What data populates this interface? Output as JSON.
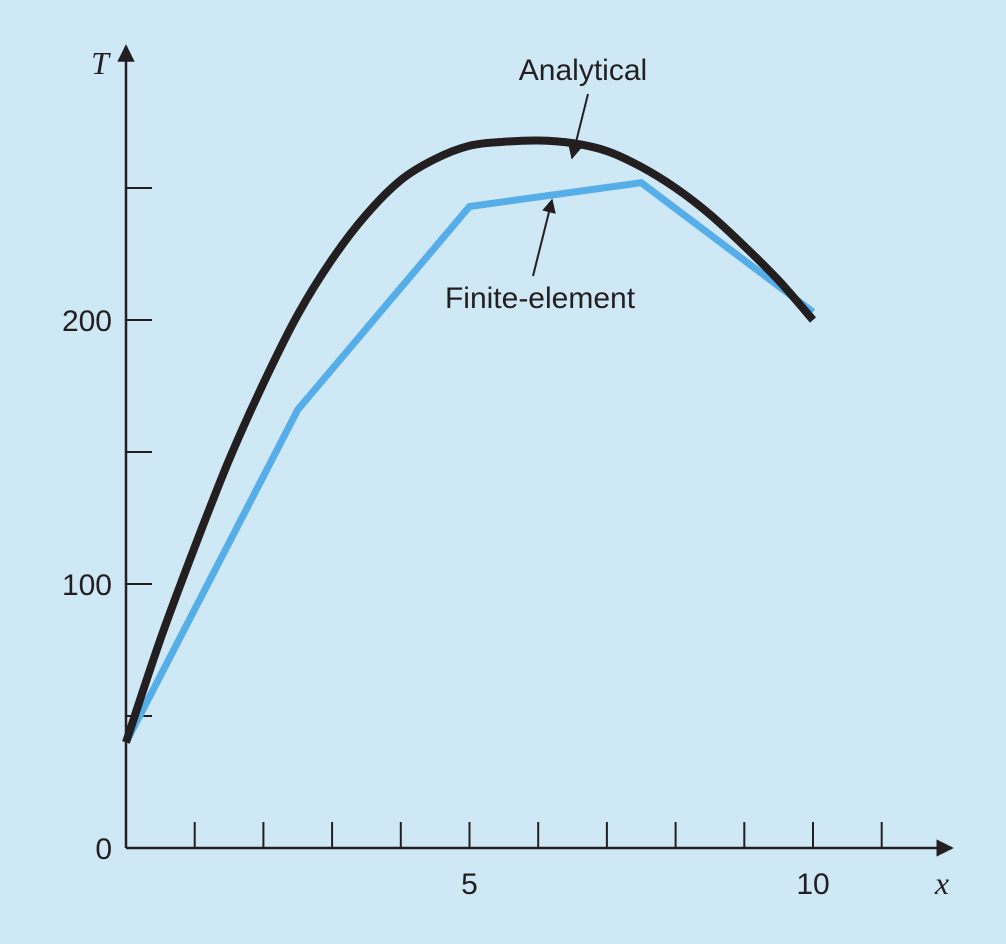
{
  "chart_data": {
    "type": "line",
    "xlabel": "x",
    "ylabel": "T",
    "xlim": [
      0,
      12
    ],
    "ylim": [
      0,
      300
    ],
    "x_ticks": [
      1,
      2,
      3,
      4,
      5,
      6,
      7,
      8,
      9,
      10,
      11
    ],
    "x_tick_labels": {
      "5": "5",
      "10": "10"
    },
    "y_ticks": [
      50,
      100,
      150,
      200,
      250
    ],
    "y_tick_labels": {
      "0": "0",
      "100": "100",
      "200": "200"
    },
    "grid": false,
    "colors": {
      "analytical": "#231f20",
      "finite_element": "#55aee8",
      "background": "#cfe8f6"
    },
    "series": [
      {
        "name": "Analytical",
        "x": [
          0,
          0.5,
          1,
          1.5,
          2,
          2.5,
          3,
          3.5,
          4,
          4.5,
          5,
          5.5,
          6,
          6.5,
          7,
          7.5,
          8,
          8.5,
          9,
          9.5,
          10
        ],
        "values": [
          40,
          79,
          114,
          147,
          176,
          202,
          223,
          240,
          253,
          261,
          266,
          267.5,
          268,
          267,
          264,
          258,
          250,
          240,
          228,
          215,
          200
        ]
      },
      {
        "name": "Finite-element",
        "x": [
          0,
          2.5,
          5,
          7.5,
          10
        ],
        "values": [
          40,
          166,
          243,
          252,
          203
        ]
      }
    ],
    "annotations": [
      {
        "text": "Analytical",
        "target_series": "Analytical"
      },
      {
        "text": "Finite-element",
        "target_series": "Finite-element"
      }
    ]
  }
}
